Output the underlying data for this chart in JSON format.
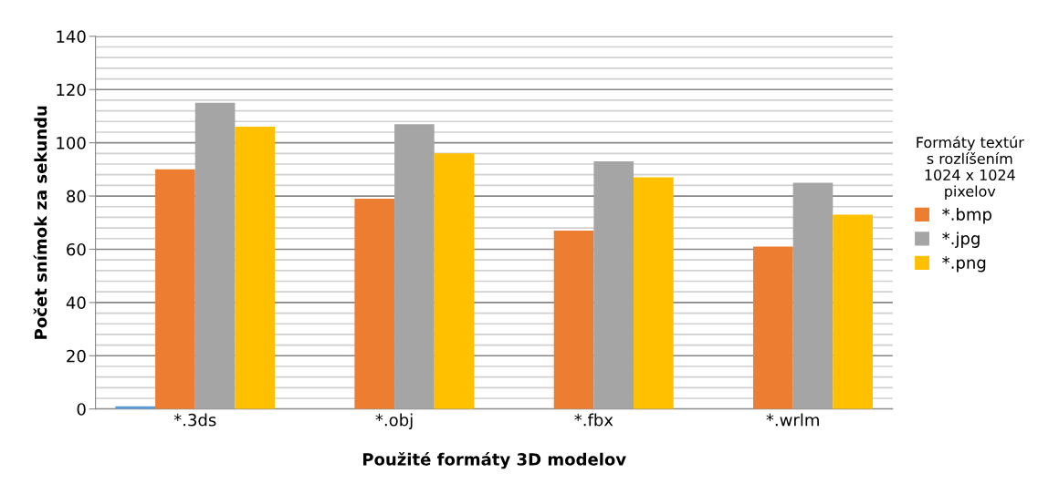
{
  "chart_data": {
    "type": "bar",
    "xlabel": "Použité formáty 3D modelov",
    "ylabel": "Počet snímok za sekundu",
    "legend_title": "Formáty textúr\ns rozlíšením\n1024 x 1024\npixelov",
    "categories": [
      "*.3ds",
      "*.obj",
      "*.fbx",
      "*.wrlm"
    ],
    "series": [
      {
        "color": "#5b9bd5",
        "values": [
          1,
          null,
          null,
          null
        ]
      },
      {
        "name": "*.bmp",
        "color": "#ed7d31",
        "values": [
          90,
          79,
          67,
          61
        ]
      },
      {
        "name": "*.jpg",
        "color": "#a5a5a5",
        "values": [
          115,
          107,
          93,
          85
        ]
      },
      {
        "name": "*.png",
        "color": "#ffc000",
        "values": [
          106,
          96,
          87,
          73
        ]
      }
    ],
    "ylim": [
      0,
      140
    ],
    "yticks": [
      0,
      {
        "value": 4,
        "label": null
      },
      {
        "value": 8,
        "label": null
      },
      {
        "value": 12,
        "label": null
      },
      {
        "value": 16,
        "label": null
      },
      20,
      {
        "value": 24,
        "label": null
      },
      {
        "value": 28,
        "label": null
      },
      {
        "value": 32,
        "label": null
      },
      {
        "value": 36,
        "label": null
      },
      40,
      {
        "value": 44,
        "label": null
      },
      {
        "value": 48,
        "label": null
      },
      {
        "value": 52,
        "label": null
      },
      {
        "value": 56,
        "label": null
      },
      60,
      {
        "value": 64,
        "label": null
      },
      {
        "value": 68,
        "label": null
      },
      {
        "value": 72,
        "label": null
      },
      {
        "value": 76,
        "label": null
      },
      80,
      {
        "value": 84,
        "label": null
      },
      {
        "value": 88,
        "label": null
      },
      {
        "value": 92,
        "label": null
      },
      {
        "value": 96,
        "label": null
      },
      100,
      {
        "value": 104,
        "label": null
      },
      {
        "value": 108,
        "label": null
      },
      {
        "value": 112,
        "label": null
      },
      {
        "value": 116,
        "label": null
      },
      120,
      {
        "value": 124,
        "label": null
      },
      {
        "value": 128,
        "label": null
      },
      {
        "value": 132,
        "label": null
      },
      {
        "value": 136,
        "label": null
      },
      140
    ],
    "grid": "y",
    "legend": "right"
  }
}
